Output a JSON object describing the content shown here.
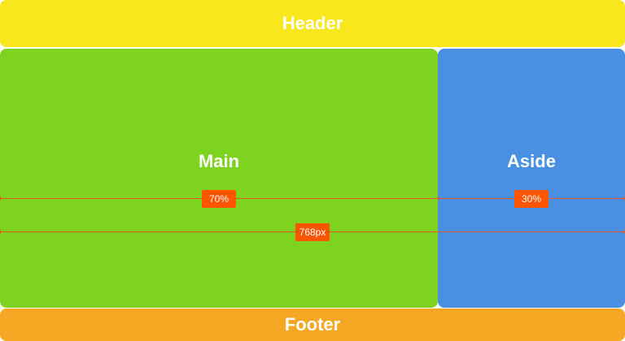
{
  "layout": {
    "header_label": "Header",
    "main_label": "Main",
    "aside_label": "Aside",
    "footer_label": "Footer"
  },
  "colors": {
    "header": "#f8e71c",
    "main": "#7ed321",
    "aside": "#4a90e2",
    "footer": "#f5a623",
    "measure": "#ff5400"
  },
  "measurements": {
    "main_width_label": "70%",
    "aside_width_label": "30%",
    "total_width_label": "768px"
  }
}
